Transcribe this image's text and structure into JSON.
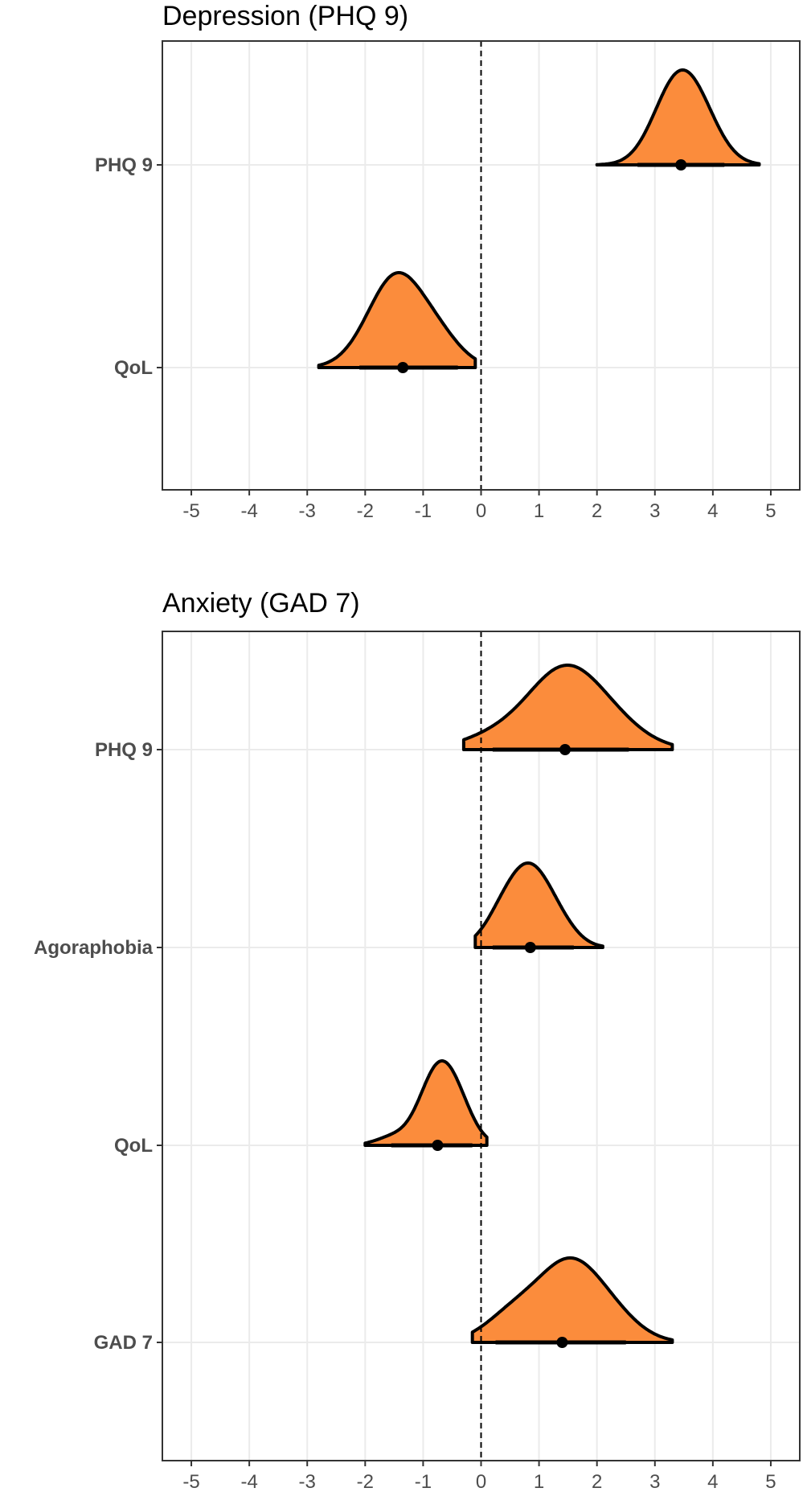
{
  "chart_data": [
    {
      "type": "density-interval",
      "title": "Depression (PHQ 9)",
      "xlim": [
        -5.5,
        5.5
      ],
      "x_ticks": [
        -5,
        -4,
        -3,
        -2,
        -1,
        0,
        1,
        2,
        3,
        4,
        5
      ],
      "reference_line_x": 0,
      "grid": true,
      "fill_color": "#fb8c3c",
      "rows": [
        {
          "label": "PHQ 9",
          "point": 3.45,
          "interval": [
            2.7,
            4.2
          ],
          "range": [
            2.0,
            4.8
          ],
          "shape_peaks": [
            [
              3.45,
              1.0
            ],
            [
              3.8,
              0.7
            ],
            [
              3.2,
              0.6
            ]
          ],
          "spread": 0.38
        },
        {
          "label": "QoL",
          "point": -1.35,
          "interval": [
            -2.1,
            -0.4
          ],
          "range": [
            -2.8,
            -0.1
          ],
          "shape_peaks": [
            [
              -1.45,
              1.0
            ],
            [
              -0.8,
              0.45
            ],
            [
              -1.9,
              0.25
            ]
          ],
          "spread": 0.42
        }
      ]
    },
    {
      "type": "density-interval",
      "title": "Anxiety (GAD 7)",
      "xlim": [
        -5.5,
        5.5
      ],
      "x_ticks": [
        -5,
        -4,
        -3,
        -2,
        -1,
        0,
        1,
        2,
        3,
        4,
        5
      ],
      "reference_line_x": 0,
      "grid": true,
      "fill_color": "#fb8c3c",
      "rows": [
        {
          "label": "PHQ 9",
          "point": 1.45,
          "interval": [
            0.2,
            2.55
          ],
          "range": [
            -0.3,
            3.3
          ],
          "shape_peaks": [
            [
              1.4,
              1.0
            ],
            [
              2.2,
              0.35
            ],
            [
              0.3,
              0.2
            ]
          ],
          "spread": 0.6
        },
        {
          "label": "Agoraphobia",
          "point": 0.85,
          "interval": [
            0.2,
            1.6
          ],
          "range": [
            -0.1,
            2.1
          ],
          "shape_peaks": [
            [
              0.85,
              1.0
            ],
            [
              0.4,
              0.55
            ],
            [
              1.3,
              0.4
            ]
          ],
          "spread": 0.33
        },
        {
          "label": "QoL",
          "point": -0.75,
          "interval": [
            -1.55,
            -0.15
          ],
          "range": [
            -2.0,
            0.1
          ],
          "shape_peaks": [
            [
              -0.8,
              1.0
            ],
            [
              -0.45,
              0.7
            ],
            [
              -1.5,
              0.15
            ]
          ],
          "spread": 0.3
        },
        {
          "label": "GAD 7",
          "point": 1.4,
          "interval": [
            0.25,
            2.5
          ],
          "range": [
            -0.15,
            3.3
          ],
          "shape_peaks": [
            [
              1.5,
              1.0
            ],
            [
              0.6,
              0.45
            ],
            [
              2.2,
              0.4
            ]
          ],
          "spread": 0.5
        }
      ]
    }
  ]
}
